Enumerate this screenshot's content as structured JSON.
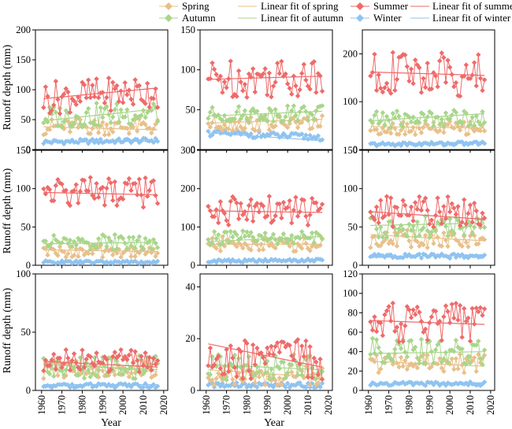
{
  "legend": [
    {
      "key": "spring",
      "label": "Spring",
      "marker": "diamond"
    },
    {
      "key": "spring_fit",
      "label": "Linear fit of spring",
      "marker": "line"
    },
    {
      "key": "summer",
      "label": "Summer",
      "marker": "diamond"
    },
    {
      "key": "summer_fit",
      "label": "Linear fit of summer",
      "marker": "line"
    },
    {
      "key": "autumn",
      "label": "Autumn",
      "marker": "diamond"
    },
    {
      "key": "autumn_fit",
      "label": "Linear fit of autumn",
      "marker": "line"
    },
    {
      "key": "winter",
      "label": "Winter",
      "marker": "diamond"
    },
    {
      "key": "winter_fit",
      "label": "Linear fit of winter",
      "marker": "line"
    }
  ],
  "colors": {
    "spring": "#e8c08a",
    "summer": "#ef6a6a",
    "autumn": "#a8d68a",
    "winter": "#8fc3f0"
  },
  "ylabel": "Runoff depth (mm)",
  "xlabel": "Year",
  "xticks": [
    "1960",
    "1970",
    "1980",
    "1990",
    "2000",
    "2010",
    "2020"
  ],
  "chart_data": [
    {
      "type": "line",
      "ylim": [
        0,
        200
      ],
      "yticks": [
        "0",
        "50",
        "100",
        "150",
        "200"
      ],
      "series": {
        "spring": {
          "base": 38,
          "amp": 14,
          "slope": 0
        },
        "summer": {
          "base": 92,
          "amp": 28,
          "slope": 0.2
        },
        "autumn": {
          "base": 58,
          "amp": 20,
          "slope": 0.15
        },
        "winter": {
          "base": 14,
          "amp": 4,
          "slope": 0.05
        }
      },
      "fits": {
        "spring": [
          38,
          33
        ],
        "summer": [
          85,
          103
        ],
        "autumn": [
          48,
          68
        ],
        "winter": [
          12,
          14
        ]
      }
    },
    {
      "type": "line",
      "ylim": [
        0,
        150
      ],
      "yticks": [
        "0",
        "50",
        "100",
        "150"
      ],
      "series": {
        "spring": {
          "base": 33,
          "amp": 10,
          "slope": 0
        },
        "summer": {
          "base": 90,
          "amp": 25,
          "slope": 0.05
        },
        "autumn": {
          "base": 45,
          "amp": 10,
          "slope": 0.05
        },
        "winter": {
          "base": 18,
          "amp": 4,
          "slope": -0.1
        }
      },
      "fits": {
        "spring": [
          33,
          38
        ],
        "summer": [
          88,
          92
        ],
        "autumn": [
          42,
          48
        ],
        "winter": [
          21,
          11
        ]
      }
    },
    {
      "type": "line",
      "ylim": [
        0,
        250
      ],
      "yticks": [
        "0",
        "100",
        "200"
      ],
      "series": {
        "spring": {
          "base": 45,
          "amp": 14,
          "slope": 0
        },
        "summer": {
          "base": 158,
          "amp": 45,
          "slope": -0.1
        },
        "autumn": {
          "base": 65,
          "amp": 18,
          "slope": 0.1
        },
        "winter": {
          "base": 12,
          "amp": 4,
          "slope": 0.05
        }
      },
      "fits": {
        "spring": [
          48,
          45
        ],
        "summer": [
          162,
          155
        ],
        "autumn": [
          60,
          75
        ],
        "winter": [
          11,
          16
        ]
      }
    },
    {
      "type": "line",
      "ylim": [
        0,
        150
      ],
      "yticks": [
        "0",
        "50",
        "100",
        "150"
      ],
      "series": {
        "spring": {
          "base": 18,
          "amp": 8,
          "slope": 0
        },
        "summer": {
          "base": 95,
          "amp": 20,
          "slope": 0
        },
        "autumn": {
          "base": 30,
          "amp": 10,
          "slope": 0
        },
        "winter": {
          "base": 4,
          "amp": 2,
          "slope": 0
        }
      },
      "fits": {
        "spring": [
          20,
          18
        ],
        "summer": [
          95,
          92
        ],
        "autumn": [
          28,
          30
        ],
        "winter": [
          4,
          4
        ]
      }
    },
    {
      "type": "line",
      "ylim": [
        0,
        300
      ],
      "yticks": [
        "0",
        "100",
        "200",
        "300"
      ],
      "series": {
        "spring": {
          "base": 55,
          "amp": 20,
          "slope": 0
        },
        "summer": {
          "base": 140,
          "amp": 40,
          "slope": 0
        },
        "autumn": {
          "base": 70,
          "amp": 20,
          "slope": 0
        },
        "winter": {
          "base": 12,
          "amp": 4,
          "slope": 0.05
        }
      },
      "fits": {
        "spring": [
          55,
          55
        ],
        "summer": [
          142,
          138
        ],
        "autumn": [
          62,
          75
        ],
        "winter": [
          10,
          14
        ]
      }
    },
    {
      "type": "line",
      "ylim": [
        0,
        150
      ],
      "yticks": [
        "0",
        "50",
        "100",
        "150"
      ],
      "series": {
        "spring": {
          "base": 35,
          "amp": 12,
          "slope": 0
        },
        "summer": {
          "base": 70,
          "amp": 20,
          "slope": 0
        },
        "autumn": {
          "base": 50,
          "amp": 15,
          "slope": 0
        },
        "winter": {
          "base": 12,
          "amp": 3,
          "slope": 0
        }
      },
      "fits": {
        "spring": [
          40,
          32
        ],
        "summer": [
          70,
          60
        ],
        "autumn": [
          52,
          55
        ],
        "winter": [
          10,
          14
        ]
      }
    },
    {
      "type": "line",
      "ylim": [
        0,
        100
      ],
      "yticks": [
        "0",
        "50",
        "100"
      ],
      "series": {
        "spring": {
          "base": 18,
          "amp": 8,
          "slope": 0
        },
        "summer": {
          "base": 25,
          "amp": 10,
          "slope": 0
        },
        "autumn": {
          "base": 20,
          "amp": 10,
          "slope": 0
        },
        "winter": {
          "base": 4,
          "amp": 2,
          "slope": 0
        }
      },
      "fits": {
        "spring": [
          24,
          16
        ],
        "summer": [
          25,
          20
        ],
        "autumn": [
          22,
          18
        ],
        "winter": [
          5,
          5
        ]
      }
    },
    {
      "type": "line",
      "ylim": [
        0,
        45
      ],
      "yticks": [
        "0",
        "20",
        "40"
      ],
      "series": {
        "spring": {
          "base": 6,
          "amp": 4,
          "slope": 0
        },
        "summer": {
          "base": 12,
          "amp": 8,
          "slope": 0
        },
        "autumn": {
          "base": 9,
          "amp": 5,
          "slope": 0
        },
        "winter": {
          "base": 2,
          "amp": 1,
          "slope": 0
        }
      },
      "fits": {
        "spring": [
          8,
          5
        ],
        "summer": [
          18,
          9
        ],
        "autumn": [
          10,
          8
        ],
        "winter": [
          2,
          2
        ]
      }
    },
    {
      "type": "line",
      "ylim": [
        0,
        120
      ],
      "yticks": [
        "0",
        "20",
        "40",
        "60",
        "80",
        "100",
        "120"
      ],
      "series": {
        "spring": {
          "base": 28,
          "amp": 10,
          "slope": 0
        },
        "summer": {
          "base": 70,
          "amp": 20,
          "slope": 0
        },
        "autumn": {
          "base": 40,
          "amp": 14,
          "slope": 0
        },
        "winter": {
          "base": 7,
          "amp": 2,
          "slope": 0
        }
      },
      "fits": {
        "spring": [
          30,
          25
        ],
        "summer": [
          72,
          68
        ],
        "autumn": [
          38,
          40
        ],
        "winter": [
          6,
          8
        ]
      }
    }
  ]
}
